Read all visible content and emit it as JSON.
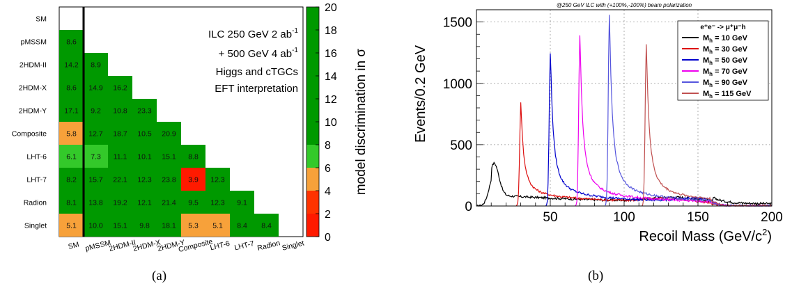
{
  "panel_labels": {
    "a": "(a)",
    "b": "(b)"
  },
  "chart_data": [
    {
      "type": "heatmap",
      "row_labels": [
        "SM",
        "pMSSM",
        "2HDM-II",
        "2HDM-X",
        "2HDM-Y",
        "Composite",
        "LHT-6",
        "LHT-7",
        "Radion",
        "Singlet"
      ],
      "col_labels": [
        "SM",
        "pMSSM",
        "2HDM-II",
        "2HDM-X",
        "2HDM-Y",
        "Composite",
        "LHT-6",
        "LHT-7",
        "Radion",
        "Singlet"
      ],
      "cells": [
        [],
        [
          "8.6"
        ],
        [
          "14.2",
          "8.9"
        ],
        [
          "8.6",
          "14.9",
          "16.2"
        ],
        [
          "17.1",
          "9.2",
          "10.8",
          "23.3"
        ],
        [
          "5.8",
          "12.7",
          "18.7",
          "10.5",
          "20.9"
        ],
        [
          "6.1",
          "7.3",
          "11.1",
          "10.1",
          "15.1",
          "8.8"
        ],
        [
          "8.2",
          "15.7",
          "22.1",
          "12.3",
          "23.8",
          "3.9",
          "12.3"
        ],
        [
          "8.1",
          "13.8",
          "19.2",
          "12.1",
          "21.4",
          "9.5",
          "12.3",
          "9.1"
        ],
        [
          "5.1",
          "10.0",
          "15.1",
          "9.8",
          "18.1",
          "5.3",
          "5.1",
          "8.4",
          "8.4"
        ]
      ],
      "annotation_lines": [
        "ILC 250 GeV 2 ab",
        "+ 500 GeV 4 ab",
        "Higgs and cTGCs",
        "EFT interpretation"
      ],
      "annotation_sup": "-1",
      "colorbar": {
        "label": "model discrimination in σ",
        "range": [
          0,
          20
        ],
        "ticks": [
          "0",
          "2",
          "4",
          "6",
          "8",
          "10",
          "12",
          "14",
          "16",
          "18",
          "20"
        ],
        "bands": [
          {
            "from": 0,
            "to": 2,
            "color": "#ff1a00"
          },
          {
            "from": 2,
            "to": 4,
            "color": "#ff3300"
          },
          {
            "from": 4,
            "to": 6,
            "color": "#f7a13a"
          },
          {
            "from": 6,
            "to": 8,
            "color": "#33c92a"
          },
          {
            "from": 8,
            "to": 20,
            "color": "#009900"
          }
        ]
      },
      "colors": {
        "high": "#009900",
        "mid": "#33c92a",
        "low": "#f7a13a",
        "very_low": "#ff1a00"
      }
    },
    {
      "type": "line",
      "title": "@250 GeV ILC with (+100%,-100%) beam polarization",
      "xlabel": "Recoil Mass (GeV/c",
      "xlabel_sup": "2",
      "xlabel_close": ")",
      "ylabel": "Events/0.2 GeV",
      "xlim": [
        0,
        200
      ],
      "ylim": [
        0,
        1600
      ],
      "x_ticks": [
        "50",
        "100",
        "150",
        "200"
      ],
      "y_ticks": [
        "0",
        "500",
        "1000",
        "1500"
      ],
      "grid": true,
      "legend_header": "e⁺e⁻ -> μ⁺μ⁻h",
      "legend_position": "top-right",
      "series": [
        {
          "name": "M",
          "sub": "h",
          "suffix": " = 10 GeV",
          "color": "#000000",
          "mass": 10,
          "peak": 320
        },
        {
          "name": "M",
          "sub": "h",
          "suffix": " = 30 GeV",
          "color": "#dd1111",
          "mass": 30,
          "peak": 770
        },
        {
          "name": "M",
          "sub": "h",
          "suffix": " = 50 GeV",
          "color": "#0000cc",
          "mass": 50,
          "peak": 1180
        },
        {
          "name": "M",
          "sub": "h",
          "suffix": " = 70 GeV",
          "color": "#ee00ee",
          "mass": 70,
          "peak": 1320
        },
        {
          "name": "M",
          "sub": "h",
          "suffix": " = 90 GeV",
          "color": "#5555dd",
          "mass": 90,
          "peak": 1480
        },
        {
          "name": "M",
          "sub": "h",
          "suffix": " = 115 GeV",
          "color": "#c05050",
          "mass": 115,
          "peak": 1250
        }
      ]
    }
  ]
}
